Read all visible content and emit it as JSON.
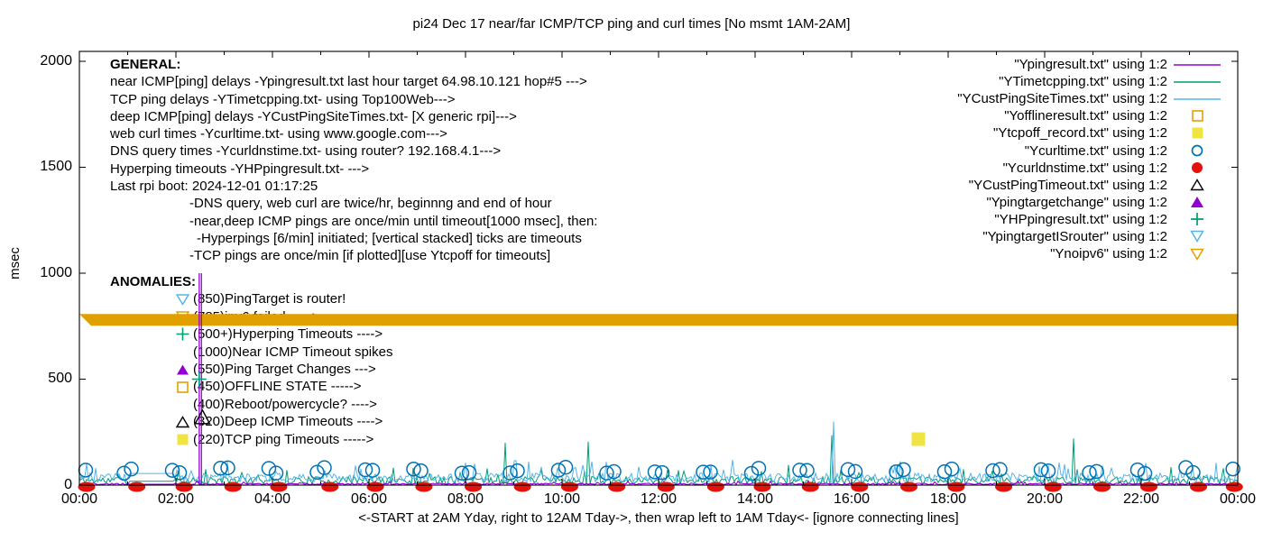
{
  "title": "pi24 Dec 17  near/far ICMP/TCP ping and curl times [No msmt 1AM-2AM]",
  "colors": {
    "purple": "#9400D3",
    "teal": "#009E73",
    "skyblue": "#56B4E9",
    "orange": "#E69F00",
    "gold": "#DFA000",
    "yellow": "#F0E442",
    "blue": "#0072B2",
    "red": "#E3120B",
    "black": "#000000"
  },
  "y_axis": {
    "label": "msec",
    "ticks": [
      "0",
      "500",
      "1000",
      "1500",
      "2000"
    ]
  },
  "x_axis": {
    "ticks": [
      "00:00",
      "02:00",
      "04:00",
      "06:00",
      "08:00",
      "10:00",
      "12:00",
      "14:00",
      "16:00",
      "18:00",
      "20:00",
      "22:00",
      "00:00"
    ],
    "label": "<-START at 2AM Yday, right to 12AM Tday->, then wrap left to 1AM Tday<- [ignore connecting lines]"
  },
  "general": {
    "heading": "GENERAL:",
    "lines": [
      "near ICMP[ping] delays -Ypingresult.txt last hour target 64.98.10.121 hop#5 --->",
      "TCP ping delays -YTimetcpping.txt- using Top100Web--->",
      "deep ICMP[ping] delays -YCustPingSiteTimes.txt- [X generic rpi]--->",
      "web curl times -Ycurltime.txt- using www.google.com--->",
      "DNS query times -Ycurldnstime.txt- using router? 192.168.4.1--->",
      "Hyperping timeouts -YHPpingresult.txt- --->",
      "Last rpi boot: 2024-12-01 01:17:25"
    ],
    "notes": [
      "-DNS query, web curl are twice/hr, beginnng and end of hour",
      "-near,deep ICMP pings are once/min until timeout[1000 msec], then:",
      "-Hyperpings [6/min] initiated; [vertical stacked] ticks are timeouts",
      "-TCP pings are once/min [if plotted][use Ytcpoff for timeouts]"
    ]
  },
  "anomalies": {
    "heading": "ANOMALIES:",
    "items": [
      {
        "marker": "skyblue-open-down-triangle",
        "text": "(850)PingTarget is router!"
      },
      {
        "marker": "orange-open-down-triangle",
        "text": "(785)ipv6 failed ----->"
      },
      {
        "marker": "teal-plus",
        "text": "(500+)Hyperping Timeouts ---->"
      },
      {
        "marker": "none",
        "text": "(1000)Near ICMP Timeout spikes"
      },
      {
        "marker": "purple-filled-up-triangle",
        "text": "(550)Ping Target Changes --->"
      },
      {
        "marker": "orange-open-square",
        "text": "(450)OFFLINE STATE ----->"
      },
      {
        "marker": "none",
        "text": "(400)Reboot/powercycle? ---->"
      },
      {
        "marker": "black-open-up-triangle",
        "text": "(320)Deep ICMP Timeouts ---->"
      },
      {
        "marker": "yellow-filled-square",
        "text": "(220)TCP ping Timeouts ----->"
      }
    ]
  },
  "legend": {
    "entries": [
      {
        "label": "\"Ypingresult.txt\" using 1:2",
        "marker": "purple-line"
      },
      {
        "label": "\"YTimetcpping.txt\" using 1:2",
        "marker": "teal-line"
      },
      {
        "label": "\"YCustPingSiteTimes.txt\" using 1:2",
        "marker": "skyblue-line"
      },
      {
        "label": "\"Yofflineresult.txt\" using 1:2",
        "marker": "orange-open-square"
      },
      {
        "label": "\"Ytcpoff_record.txt\" using 1:2",
        "marker": "yellow-filled-square"
      },
      {
        "label": "\"Ycurltime.txt\" using 1:2",
        "marker": "blue-open-circle"
      },
      {
        "label": "\"Ycurldnstime.txt\" using 1:2",
        "marker": "red-filled-circle"
      },
      {
        "label": "\"YCustPingTimeout.txt\" using 1:2",
        "marker": "black-open-up-triangle"
      },
      {
        "label": "\"Ypingtargetchange\" using 1:2",
        "marker": "purple-filled-up-triangle"
      },
      {
        "label": "\"YHPpingresult.txt\" using 1:2",
        "marker": "teal-plus"
      },
      {
        "label": "\"YpingtargetISrouter\" using 1:2",
        "marker": "skyblue-open-down-triangle"
      },
      {
        "label": "\"Ynoipv6\" using 1:2",
        "marker": "orange-open-down-triangle"
      }
    ]
  },
  "chart_data": {
    "type": "line",
    "title": "pi24 Dec 17  near/far ICMP/TCP ping and curl times [No msmt 1AM-2AM]",
    "xlabel": "<-START at 2AM Yday, right to 12AM Tday->, then wrap left to 1AM Tday<- [ignore connecting lines]",
    "ylabel": "msec",
    "ylim": [
      0,
      2047
    ],
    "x_ticks": [
      "00:00",
      "02:00",
      "04:00",
      "06:00",
      "08:00",
      "10:00",
      "12:00",
      "14:00",
      "16:00",
      "18:00",
      "20:00",
      "22:00",
      "00:00"
    ],
    "y_ticks": [
      0,
      500,
      1000,
      1500,
      2000
    ],
    "grid": false,
    "legend_position": "top-right",
    "no_measurement_window": [
      "01:00",
      "02:00"
    ],
    "series": [
      {
        "name": "Ypingresult.txt",
        "color": "purple",
        "style": "line",
        "baseline_msec": [
          2,
          9
        ],
        "events": [
          {
            "time": "02:29",
            "value": 1000,
            "note": "near ICMP timeout vertical spike 0-1000 msec (double line)"
          }
        ]
      },
      {
        "name": "YTimetcpping.txt",
        "color": "teal",
        "style": "line",
        "baseline_msec": [
          5,
          40
        ],
        "gap_value": 18,
        "spikes": [
          {
            "time": "02:36",
            "value": 75
          },
          {
            "time": "04:18",
            "value": 70
          },
          {
            "time": "06:54",
            "value": 80
          },
          {
            "time": "08:50",
            "value": 200
          },
          {
            "time": "10:32",
            "value": 205
          },
          {
            "time": "12:24",
            "value": 70
          },
          {
            "time": "14:42",
            "value": 95
          },
          {
            "time": "15:36",
            "value": 235
          },
          {
            "time": "18:18",
            "value": 75
          },
          {
            "time": "20:36",
            "value": 220
          },
          {
            "time": "22:36",
            "value": 85
          }
        ]
      },
      {
        "name": "YCustPingSiteTimes.txt",
        "color": "skyblue",
        "style": "line",
        "baseline_msec": [
          15,
          57
        ],
        "gap_value": 55,
        "spikes": [
          {
            "time": "00:21",
            "value": 80
          },
          {
            "time": "09:18",
            "value": 110
          },
          {
            "time": "13:06",
            "value": 95
          },
          {
            "time": "15:35",
            "value": 576
          },
          {
            "time": "15:38",
            "value": 300
          },
          {
            "time": "19:54",
            "value": 90
          },
          {
            "time": "23:33",
            "value": 105
          }
        ]
      },
      {
        "name": "Yofflineresult.txt",
        "color": "orange",
        "style": "open-square",
        "points": []
      },
      {
        "name": "Ytcpoff_record.txt",
        "color": "yellow",
        "style": "filled-square",
        "points": [
          {
            "time": "17:23",
            "value": 217
          }
        ]
      },
      {
        "name": "Ycurltime.txt",
        "color": "blue",
        "style": "open-circle",
        "schedule": "twice per hour, beginning and end of hour",
        "value_range_msec": [
          55,
          85
        ]
      },
      {
        "name": "Ycurldnstime.txt",
        "color": "red",
        "style": "filled-circle",
        "schedule": "twice per hour, beginning and end of hour",
        "value_range_msec": [
          0,
          10
        ]
      },
      {
        "name": "YCustPingTimeout.txt",
        "color": "black",
        "style": "open-up-triangle",
        "points": [
          {
            "time": "02:33",
            "value": 320
          }
        ]
      },
      {
        "name": "Ypingtargetchange",
        "color": "purple",
        "style": "filled-up-triangle",
        "points": []
      },
      {
        "name": "YHPpingresult.txt",
        "color": "teal",
        "style": "plus",
        "points": [
          {
            "time": "02:29",
            "value": 500
          }
        ]
      },
      {
        "name": "YpingtargetISrouter",
        "color": "skyblue",
        "style": "open-down-triangle",
        "points": []
      },
      {
        "name": "Ynoipv6",
        "color": "gold",
        "style": "open-down-triangle",
        "band_value": 780,
        "note": "rendered as thick horizontal band across full plot width"
      }
    ]
  }
}
